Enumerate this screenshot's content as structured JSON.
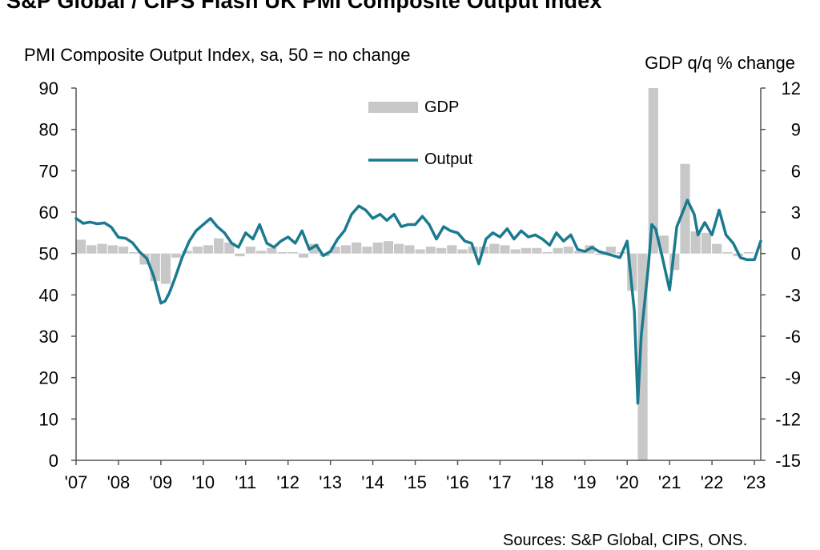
{
  "chart_data": {
    "type": "bar+line",
    "title": "S&P Global / CIPS Flash UK PMI Composite Output Index",
    "source": "Sources: S&P Global, CIPS, ONS.",
    "left_axis_label": "PMI Composite Output Index, sa, 50 = no change",
    "right_axis_label": "GDP q/q % change",
    "left_ticks": [
      "90",
      "80",
      "70",
      "60",
      "50",
      "40",
      "30",
      "20",
      "10",
      "0"
    ],
    "right_ticks": [
      "12",
      "9",
      "6",
      "3",
      "0",
      "-3",
      "-6",
      "-9",
      "-12",
      "-15"
    ],
    "x_ticks": [
      "'07",
      "'08",
      "'09",
      "'10",
      "'11",
      "'12",
      "'13",
      "'14",
      "'15",
      "'16",
      "'17",
      "'18",
      "'19",
      "'20",
      "'21",
      "'22",
      "'23"
    ],
    "ylim_left": [
      0,
      90
    ],
    "ylim_right": [
      -15,
      12
    ],
    "xlim": [
      2007.0,
      2023.15
    ],
    "legend": {
      "gdp": "GDP",
      "output": "Output",
      "placement": "top-center"
    },
    "colors": {
      "gdp": "#c8c8c8",
      "output": "#1a7a90"
    },
    "gdp_series": {
      "name": "GDP",
      "quarters": [
        2007.0,
        2007.25,
        2007.5,
        2007.75,
        2008.0,
        2008.25,
        2008.5,
        2008.75,
        2009.0,
        2009.25,
        2009.5,
        2009.75,
        2010.0,
        2010.25,
        2010.5,
        2010.75,
        2011.0,
        2011.25,
        2011.5,
        2011.75,
        2012.0,
        2012.25,
        2012.5,
        2012.75,
        2013.0,
        2013.25,
        2013.5,
        2013.75,
        2014.0,
        2014.25,
        2014.5,
        2014.75,
        2015.0,
        2015.25,
        2015.5,
        2015.75,
        2016.0,
        2016.25,
        2016.5,
        2016.75,
        2017.0,
        2017.25,
        2017.5,
        2017.75,
        2018.0,
        2018.25,
        2018.5,
        2018.75,
        2019.0,
        2019.25,
        2019.5,
        2019.75,
        2020.0,
        2020.25,
        2020.5,
        2020.75,
        2021.0,
        2021.25,
        2021.5,
        2021.75,
        2022.0,
        2022.25,
        2022.5,
        2022.75
      ],
      "values": [
        1.0,
        0.6,
        0.7,
        0.6,
        0.5,
        0.1,
        -0.8,
        -2.0,
        -2.2,
        -0.3,
        0.2,
        0.5,
        0.6,
        1.1,
        0.8,
        -0.2,
        0.5,
        0.2,
        0.4,
        0.1,
        0.1,
        -0.3,
        0.7,
        -0.2,
        0.5,
        0.6,
        0.8,
        0.5,
        0.8,
        0.9,
        0.7,
        0.6,
        0.3,
        0.5,
        0.4,
        0.6,
        0.3,
        0.5,
        0.5,
        0.7,
        0.6,
        0.3,
        0.4,
        0.4,
        0.1,
        0.4,
        0.5,
        0.2,
        0.6,
        -0.1,
        0.5,
        0.1,
        -2.7,
        -19.5,
        16.9,
        1.3,
        -1.2,
        6.5,
        1.6,
        1.5,
        0.7,
        0.1,
        -0.2,
        0.1
      ]
    },
    "output_series": {
      "name": "Output",
      "points": [
        [
          2007.0,
          58.5
        ],
        [
          2007.17,
          57.3
        ],
        [
          2007.33,
          57.6
        ],
        [
          2007.5,
          57.2
        ],
        [
          2007.67,
          57.4
        ],
        [
          2007.83,
          56.4
        ],
        [
          2008.0,
          53.9
        ],
        [
          2008.17,
          53.7
        ],
        [
          2008.33,
          52.6
        ],
        [
          2008.5,
          50.4
        ],
        [
          2008.67,
          48.8
        ],
        [
          2008.83,
          44.5
        ],
        [
          2009.0,
          38.0
        ],
        [
          2009.1,
          38.5
        ],
        [
          2009.2,
          40.5
        ],
        [
          2009.33,
          44.0
        ],
        [
          2009.5,
          49.0
        ],
        [
          2009.67,
          53.0
        ],
        [
          2009.83,
          55.5
        ],
        [
          2010.0,
          57.0
        ],
        [
          2010.17,
          58.5
        ],
        [
          2010.33,
          56.5
        ],
        [
          2010.5,
          55.0
        ],
        [
          2010.67,
          52.5
        ],
        [
          2010.83,
          51.5
        ],
        [
          2011.0,
          55.0
        ],
        [
          2011.17,
          53.5
        ],
        [
          2011.33,
          57.0
        ],
        [
          2011.5,
          52.5
        ],
        [
          2011.67,
          51.5
        ],
        [
          2011.83,
          53.0
        ],
        [
          2012.0,
          54.0
        ],
        [
          2012.17,
          52.5
        ],
        [
          2012.33,
          55.5
        ],
        [
          2012.5,
          51.0
        ],
        [
          2012.67,
          52.0
        ],
        [
          2012.83,
          49.5
        ],
        [
          2013.0,
          50.5
        ],
        [
          2013.17,
          53.5
        ],
        [
          2013.33,
          55.5
        ],
        [
          2013.5,
          59.5
        ],
        [
          2013.67,
          61.5
        ],
        [
          2013.83,
          60.5
        ],
        [
          2014.0,
          58.5
        ],
        [
          2014.17,
          59.5
        ],
        [
          2014.33,
          58.0
        ],
        [
          2014.5,
          59.5
        ],
        [
          2014.67,
          56.5
        ],
        [
          2014.83,
          57.0
        ],
        [
          2015.0,
          57.0
        ],
        [
          2015.17,
          59.0
        ],
        [
          2015.33,
          57.0
        ],
        [
          2015.5,
          53.5
        ],
        [
          2015.67,
          56.5
        ],
        [
          2015.83,
          55.5
        ],
        [
          2016.0,
          55.0
        ],
        [
          2016.17,
          53.0
        ],
        [
          2016.33,
          52.5
        ],
        [
          2016.5,
          47.5
        ],
        [
          2016.67,
          53.5
        ],
        [
          2016.83,
          55.0
        ],
        [
          2017.0,
          54.0
        ],
        [
          2017.17,
          56.0
        ],
        [
          2017.33,
          53.5
        ],
        [
          2017.5,
          55.5
        ],
        [
          2017.67,
          54.0
        ],
        [
          2017.83,
          54.5
        ],
        [
          2018.0,
          53.5
        ],
        [
          2018.17,
          52.0
        ],
        [
          2018.33,
          55.0
        ],
        [
          2018.5,
          53.0
        ],
        [
          2018.67,
          54.5
        ],
        [
          2018.83,
          51.0
        ],
        [
          2019.0,
          50.5
        ],
        [
          2019.17,
          51.5
        ],
        [
          2019.33,
          50.5
        ],
        [
          2019.5,
          50.0
        ],
        [
          2019.67,
          49.5
        ],
        [
          2019.83,
          49.0
        ],
        [
          2020.0,
          53.0
        ],
        [
          2020.17,
          36.0
        ],
        [
          2020.25,
          13.8
        ],
        [
          2020.33,
          30.0
        ],
        [
          2020.5,
          47.0
        ],
        [
          2020.58,
          57.0
        ],
        [
          2020.67,
          56.0
        ],
        [
          2020.83,
          49.0
        ],
        [
          2021.0,
          41.2
        ],
        [
          2021.17,
          56.5
        ],
        [
          2021.33,
          60.5
        ],
        [
          2021.42,
          62.9
        ],
        [
          2021.58,
          59.5
        ],
        [
          2021.67,
          54.5
        ],
        [
          2021.83,
          57.5
        ],
        [
          2022.0,
          54.5
        ],
        [
          2022.17,
          60.5
        ],
        [
          2022.33,
          54.5
        ],
        [
          2022.5,
          52.5
        ],
        [
          2022.67,
          49.0
        ],
        [
          2022.83,
          48.5
        ],
        [
          2023.0,
          48.5
        ],
        [
          2023.15,
          53.0
        ]
      ]
    }
  }
}
